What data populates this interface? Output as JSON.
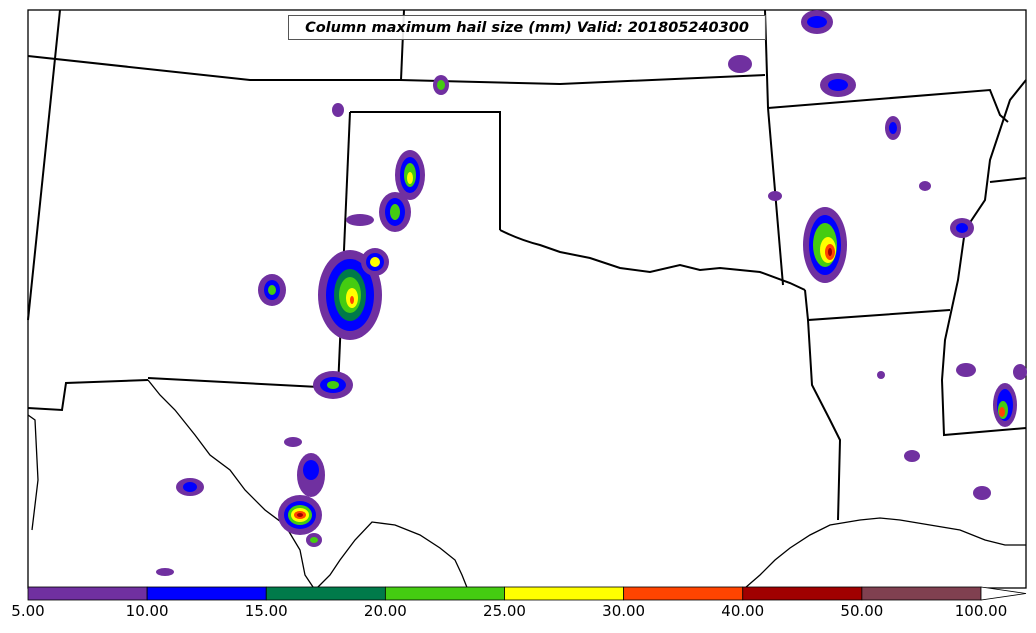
{
  "title": "Column maximum hail size (mm) Valid: 201805240300",
  "legend": {
    "bins": [
      {
        "label": "5.00",
        "color": "#7030a0"
      },
      {
        "label": "10.00",
        "color": "#0000ff"
      },
      {
        "label": "15.00",
        "color": "#007a4a"
      },
      {
        "label": "20.00",
        "color": "#44cc11"
      },
      {
        "label": "25.00",
        "color": "#ffff00"
      },
      {
        "label": "30.00",
        "color": "#ff4400"
      },
      {
        "label": "40.00",
        "color": "#a00000"
      },
      {
        "label": "50.00",
        "color": "#804050"
      },
      {
        "label": "100.00",
        "color": "#ffffff"
      }
    ]
  },
  "colors": {
    "background": "#ffffff",
    "boundary": "#000000"
  }
}
